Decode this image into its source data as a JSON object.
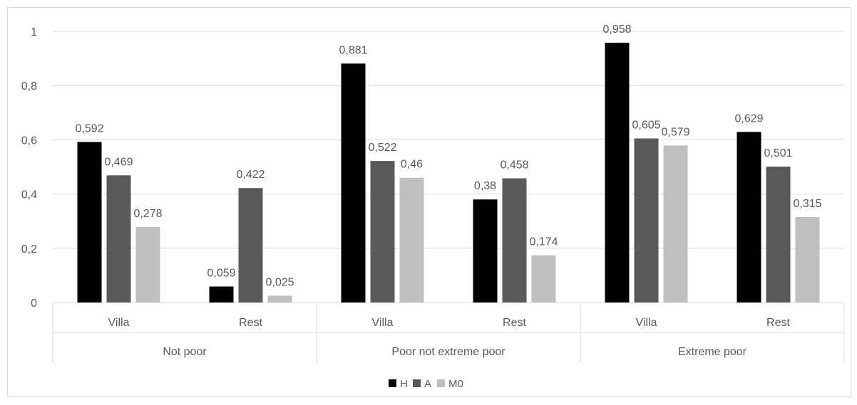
{
  "chart_data": {
    "type": "bar",
    "groups": [
      {
        "label": "Not poor",
        "categories": [
          "Villa",
          "Rest"
        ]
      },
      {
        "label": "Poor not extreme poor",
        "categories": [
          "Villa",
          "Rest"
        ]
      },
      {
        "label": "Extreme poor",
        "categories": [
          "Villa",
          "Rest"
        ]
      }
    ],
    "series": [
      {
        "name": "H",
        "color": "#000000",
        "values": [
          0.592,
          0.059,
          0.881,
          0.38,
          0.958,
          0.629
        ],
        "labels": [
          "0,592",
          "0,059",
          "0,881",
          "0,38",
          "0,958",
          "0,629"
        ]
      },
      {
        "name": "A",
        "color": "#595959",
        "values": [
          0.469,
          0.422,
          0.522,
          0.458,
          0.605,
          0.501
        ],
        "labels": [
          "0,469",
          "0,422",
          "0,522",
          "0,458",
          "0,605",
          "0,501"
        ]
      },
      {
        "name": "M0",
        "color": "#bfbfbf",
        "values": [
          0.278,
          0.025,
          0.46,
          0.174,
          0.579,
          0.315
        ],
        "labels": [
          "0,278",
          "0,025",
          "0,46",
          "0,174",
          "0,579",
          "0,315"
        ]
      }
    ],
    "ylim": [
      0,
      1
    ],
    "yticks": [
      {
        "value": 0,
        "label": "0"
      },
      {
        "value": 0.2,
        "label": "0,2"
      },
      {
        "value": 0.4,
        "label": "0,4"
      },
      {
        "value": 0.6,
        "label": "0,6"
      },
      {
        "value": 0.8,
        "label": "0,8"
      },
      {
        "value": 1,
        "label": "1"
      }
    ],
    "grid": true,
    "legend": "bottom"
  }
}
